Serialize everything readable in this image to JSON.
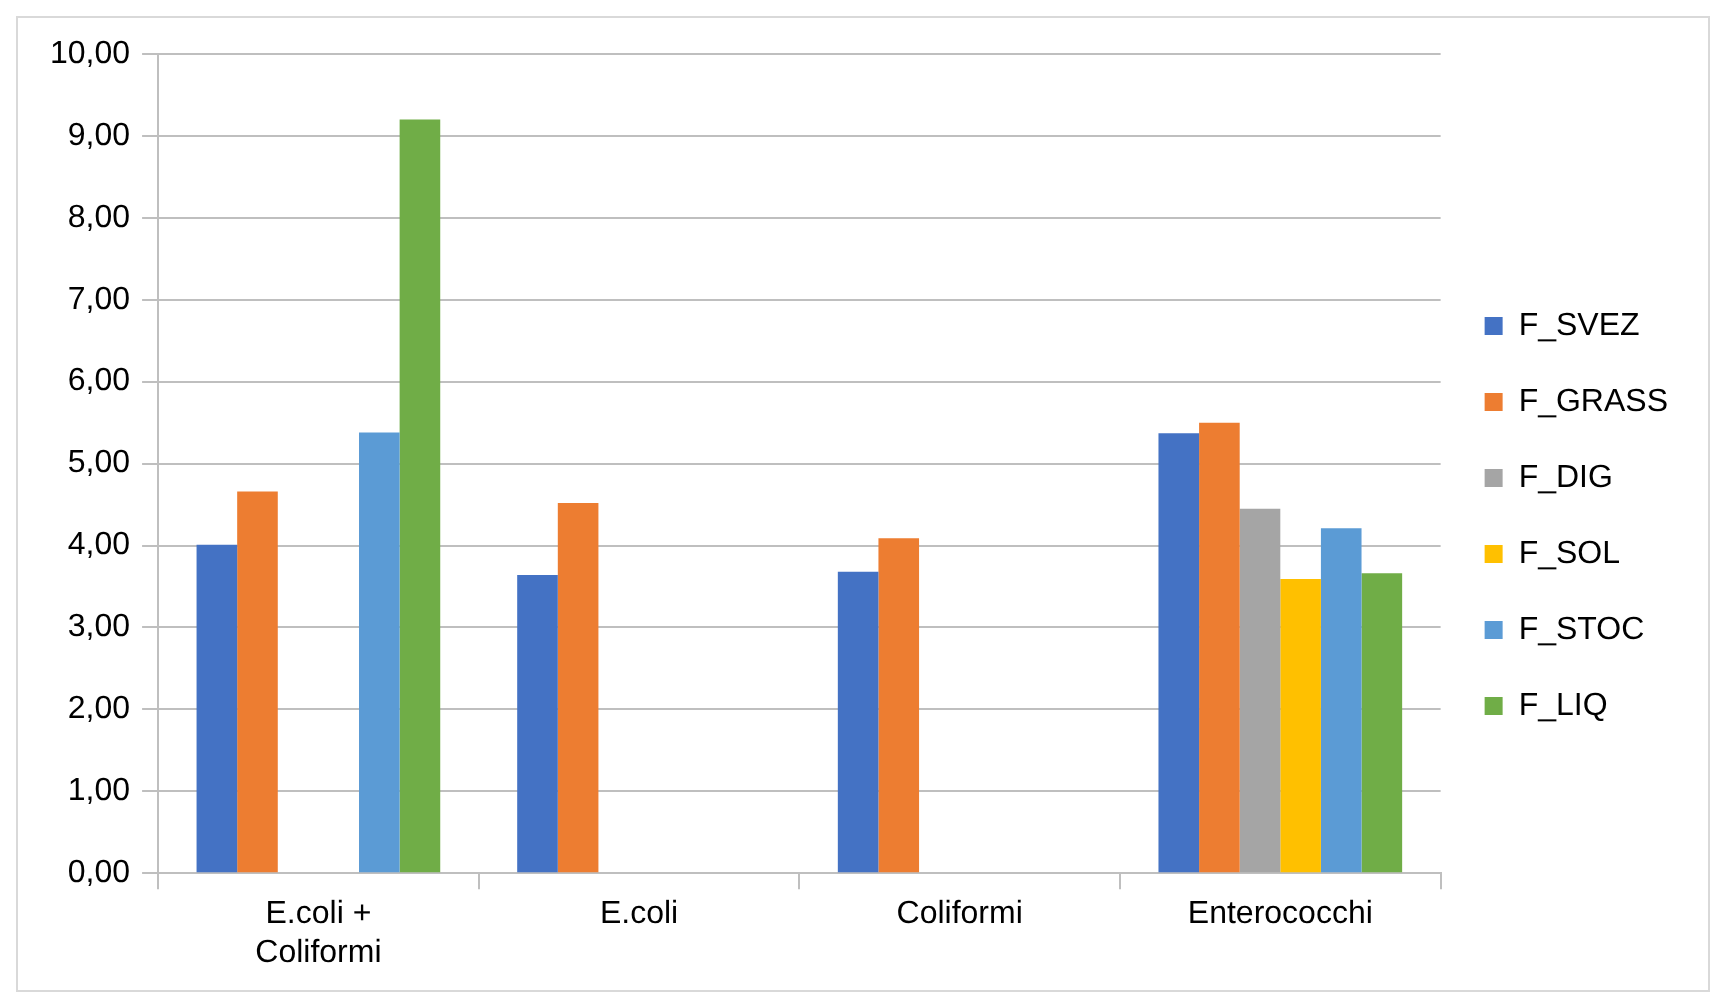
{
  "chart_data": {
    "type": "bar",
    "categories": [
      "E.coli + Coliformi",
      "E.coli",
      "Coliformi",
      "Enterococchi"
    ],
    "series": [
      {
        "name": "F_SVEZ",
        "color": "#4472c4",
        "values": [
          4.01,
          3.64,
          3.68,
          5.37
        ]
      },
      {
        "name": "F_GRASS",
        "color": "#ed7d31",
        "values": [
          4.66,
          4.52,
          4.09,
          5.5
        ]
      },
      {
        "name": "F_DIG",
        "color": "#a5a5a5",
        "values": [
          null,
          null,
          null,
          4.45
        ]
      },
      {
        "name": "F_SOL",
        "color": "#ffc000",
        "values": [
          null,
          null,
          null,
          3.59
        ]
      },
      {
        "name": "F_STOC",
        "color": "#5b9bd5",
        "values": [
          5.38,
          null,
          null,
          4.21
        ]
      },
      {
        "name": "F_LIQ",
        "color": "#70ad47",
        "values": [
          9.2,
          null,
          null,
          3.66
        ]
      }
    ],
    "ylim": [
      0,
      10
    ],
    "yticks": [
      {
        "value": 0,
        "label": "0,00"
      },
      {
        "value": 1,
        "label": "1,00"
      },
      {
        "value": 2,
        "label": "2,00"
      },
      {
        "value": 3,
        "label": "3,00"
      },
      {
        "value": 4,
        "label": "4,00"
      },
      {
        "value": 5,
        "label": "5,00"
      },
      {
        "value": 6,
        "label": "6,00"
      },
      {
        "value": 7,
        "label": "7,00"
      },
      {
        "value": 8,
        "label": "8,00"
      },
      {
        "value": 9,
        "label": "9,00"
      },
      {
        "value": 10,
        "label": "10,00"
      }
    ],
    "grid": "y",
    "legend": "right"
  }
}
